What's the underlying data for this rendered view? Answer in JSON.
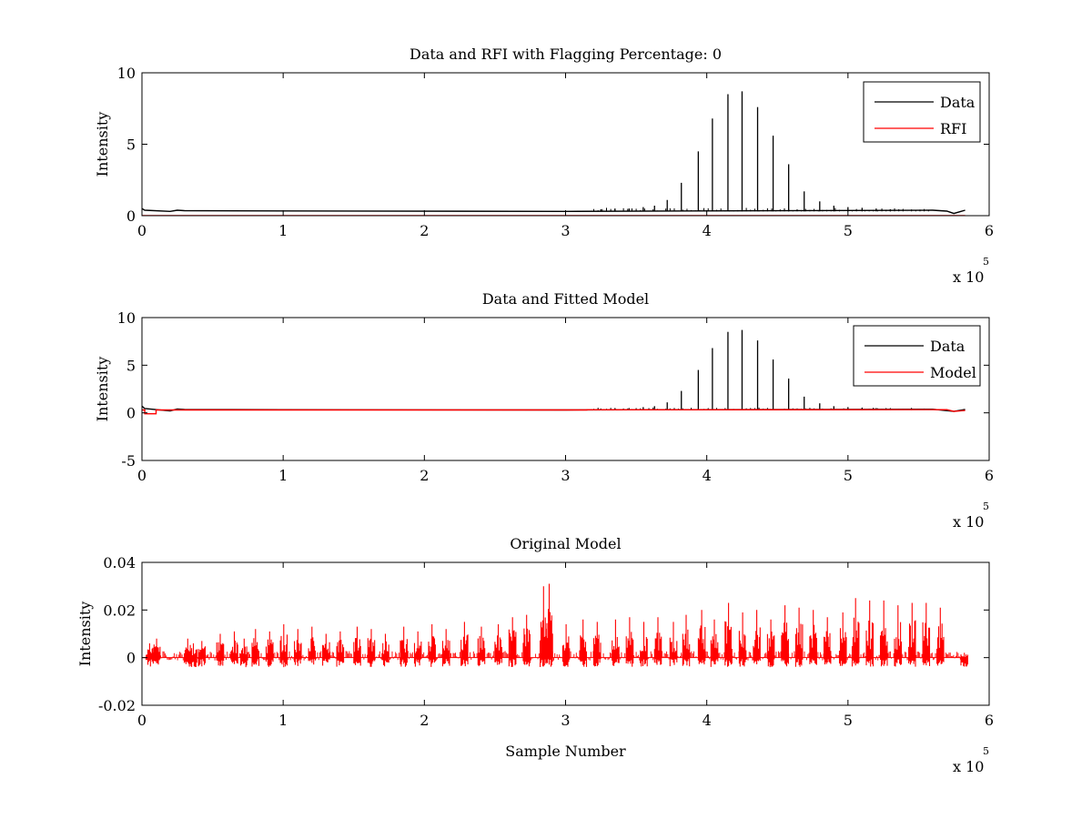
{
  "chart_data": [
    {
      "type": "line",
      "title": "Data and RFI with Flagging Percentage: 0",
      "xlabel": "",
      "ylabel": "Intensity",
      "xlim": [
        0,
        6
      ],
      "ylim": [
        0,
        10
      ],
      "xticks": [
        "0",
        "1",
        "2",
        "3",
        "4",
        "5",
        "6"
      ],
      "yticks": [
        "0",
        "5",
        "10"
      ],
      "xexponent": "x 10",
      "xexponent_power": "5",
      "legend": {
        "position": "top-right",
        "entries": [
          {
            "label": "Data",
            "color": "#000000"
          },
          {
            "label": "RFI",
            "color": "#ff0000"
          }
        ]
      },
      "series": [
        {
          "name": "Data",
          "color": "#000000",
          "baseline": [
            [
              0.0,
              0.5
            ],
            [
              0.02,
              0.38
            ],
            [
              0.2,
              0.3
            ],
            [
              0.25,
              0.38
            ],
            [
              0.3,
              0.35
            ],
            [
              1.0,
              0.33
            ],
            [
              3.0,
              0.3
            ],
            [
              5.6,
              0.38
            ],
            [
              5.7,
              0.32
            ],
            [
              5.75,
              0.15
            ],
            [
              5.8,
              0.3
            ],
            [
              5.83,
              0.38
            ]
          ],
          "peaks": [
            [
              3.25,
              0.45
            ],
            [
              3.35,
              0.5
            ],
            [
              3.45,
              0.5
            ],
            [
              3.55,
              0.6
            ],
            [
              3.63,
              0.7
            ],
            [
              3.72,
              1.1
            ],
            [
              3.82,
              2.3
            ],
            [
              3.94,
              4.5
            ],
            [
              4.04,
              6.8
            ],
            [
              4.15,
              8.5
            ],
            [
              4.25,
              8.7
            ],
            [
              4.36,
              7.6
            ],
            [
              4.47,
              5.6
            ],
            [
              4.58,
              3.6
            ],
            [
              4.69,
              1.7
            ],
            [
              4.8,
              1.0
            ],
            [
              4.9,
              0.7
            ],
            [
              5.0,
              0.6
            ],
            [
              5.1,
              0.55
            ],
            [
              5.2,
              0.5
            ],
            [
              5.3,
              0.45
            ]
          ]
        },
        {
          "name": "RFI",
          "color": "#ff0000",
          "baseline": [
            [
              0,
              0
            ],
            [
              5.83,
              0
            ]
          ],
          "peaks": []
        }
      ]
    },
    {
      "type": "line",
      "title": "Data and Fitted Model",
      "xlabel": "",
      "ylabel": "Intensity",
      "xlim": [
        0,
        6
      ],
      "ylim": [
        -5,
        10
      ],
      "xticks": [
        "0",
        "1",
        "2",
        "3",
        "4",
        "5",
        "6"
      ],
      "yticks": [
        "-5",
        "0",
        "5",
        "10"
      ],
      "xexponent": "x 10",
      "xexponent_power": "5",
      "legend": {
        "position": "top-right",
        "entries": [
          {
            "label": "Data",
            "color": "#000000"
          },
          {
            "label": "Model",
            "color": "#ff0000"
          }
        ]
      },
      "series": [
        {
          "name": "Data",
          "color": "#000000",
          "baseline": [
            [
              0.0,
              0.7
            ],
            [
              0.02,
              0.45
            ],
            [
              0.2,
              0.2
            ],
            [
              0.25,
              0.4
            ],
            [
              0.3,
              0.35
            ],
            [
              1.0,
              0.33
            ],
            [
              3.0,
              0.3
            ],
            [
              5.6,
              0.38
            ],
            [
              5.75,
              0.15
            ],
            [
              5.83,
              0.35
            ]
          ],
          "peaks": [
            [
              3.25,
              0.45
            ],
            [
              3.35,
              0.5
            ],
            [
              3.45,
              0.5
            ],
            [
              3.55,
              0.6
            ],
            [
              3.63,
              0.7
            ],
            [
              3.72,
              1.1
            ],
            [
              3.82,
              2.3
            ],
            [
              3.94,
              4.5
            ],
            [
              4.04,
              6.8
            ],
            [
              4.15,
              8.5
            ],
            [
              4.25,
              8.7
            ],
            [
              4.36,
              7.6
            ],
            [
              4.47,
              5.6
            ],
            [
              4.58,
              3.6
            ],
            [
              4.69,
              1.7
            ],
            [
              4.8,
              1.0
            ],
            [
              4.9,
              0.7
            ],
            [
              5.0,
              0.6
            ],
            [
              5.1,
              0.55
            ],
            [
              5.2,
              0.5
            ],
            [
              5.3,
              0.45
            ]
          ]
        },
        {
          "name": "Model",
          "color": "#ff0000",
          "baseline": [
            [
              0.0,
              0.3
            ],
            [
              0.02,
              0.3
            ],
            [
              0.02,
              -0.1
            ],
            [
              0.1,
              -0.1
            ],
            [
              0.1,
              0.3
            ],
            [
              3.15,
              0.3
            ],
            [
              3.15,
              0.32
            ],
            [
              5.7,
              0.33
            ],
            [
              5.75,
              0.15
            ],
            [
              5.83,
              0.25
            ]
          ],
          "peaks": []
        }
      ]
    },
    {
      "type": "line",
      "title": "Original Model",
      "xlabel": "Sample Number",
      "ylabel": "Intensity",
      "xlim": [
        0,
        6
      ],
      "ylim": [
        -0.02,
        0.04
      ],
      "xticks": [
        "0",
        "1",
        "2",
        "3",
        "4",
        "5",
        "6"
      ],
      "yticks": [
        "-0.02",
        "0",
        "0.02",
        "0.04"
      ],
      "xexponent": "x 10",
      "xexponent_power": "5",
      "series": [
        {
          "name": "",
          "color": "#ff0000",
          "bursts": [
            [
              0.05,
              0.006
            ],
            [
              0.1,
              0.008
            ],
            [
              0.32,
              0.008
            ],
            [
              0.36,
              0.006
            ],
            [
              0.42,
              0.007
            ],
            [
              0.55,
              0.01
            ],
            [
              0.65,
              0.011
            ],
            [
              0.72,
              0.008
            ],
            [
              0.8,
              0.012
            ],
            [
              0.9,
              0.011
            ],
            [
              1.0,
              0.014
            ],
            [
              1.1,
              0.012
            ],
            [
              1.2,
              0.013
            ],
            [
              1.3,
              0.01
            ],
            [
              1.4,
              0.011
            ],
            [
              1.52,
              0.013
            ],
            [
              1.62,
              0.012
            ],
            [
              1.72,
              0.01
            ],
            [
              1.85,
              0.013
            ],
            [
              1.95,
              0.011
            ],
            [
              2.05,
              0.014
            ],
            [
              2.15,
              0.012
            ],
            [
              2.28,
              0.015
            ],
            [
              2.4,
              0.013
            ],
            [
              2.52,
              0.014
            ],
            [
              2.62,
              0.017
            ],
            [
              2.72,
              0.018
            ],
            [
              2.84,
              0.03
            ],
            [
              2.88,
              0.031
            ],
            [
              3.0,
              0.014
            ],
            [
              3.12,
              0.016
            ],
            [
              3.22,
              0.015
            ],
            [
              3.35,
              0.016
            ],
            [
              3.45,
              0.017
            ],
            [
              3.55,
              0.015
            ],
            [
              3.65,
              0.017
            ],
            [
              3.76,
              0.015
            ],
            [
              3.85,
              0.018
            ],
            [
              3.96,
              0.02
            ],
            [
              4.05,
              0.016
            ],
            [
              4.15,
              0.023
            ],
            [
              4.25,
              0.019
            ],
            [
              4.35,
              0.02
            ],
            [
              4.45,
              0.016
            ],
            [
              4.55,
              0.022
            ],
            [
              4.65,
              0.021
            ],
            [
              4.75,
              0.02
            ],
            [
              4.85,
              0.017
            ],
            [
              4.96,
              0.019
            ],
            [
              5.05,
              0.025
            ],
            [
              5.15,
              0.024
            ],
            [
              5.25,
              0.024
            ],
            [
              5.35,
              0.022
            ],
            [
              5.45,
              0.023
            ],
            [
              5.55,
              0.023
            ],
            [
              5.65,
              0.021
            ],
            [
              5.82,
              0.002
            ]
          ]
        }
      ]
    }
  ]
}
